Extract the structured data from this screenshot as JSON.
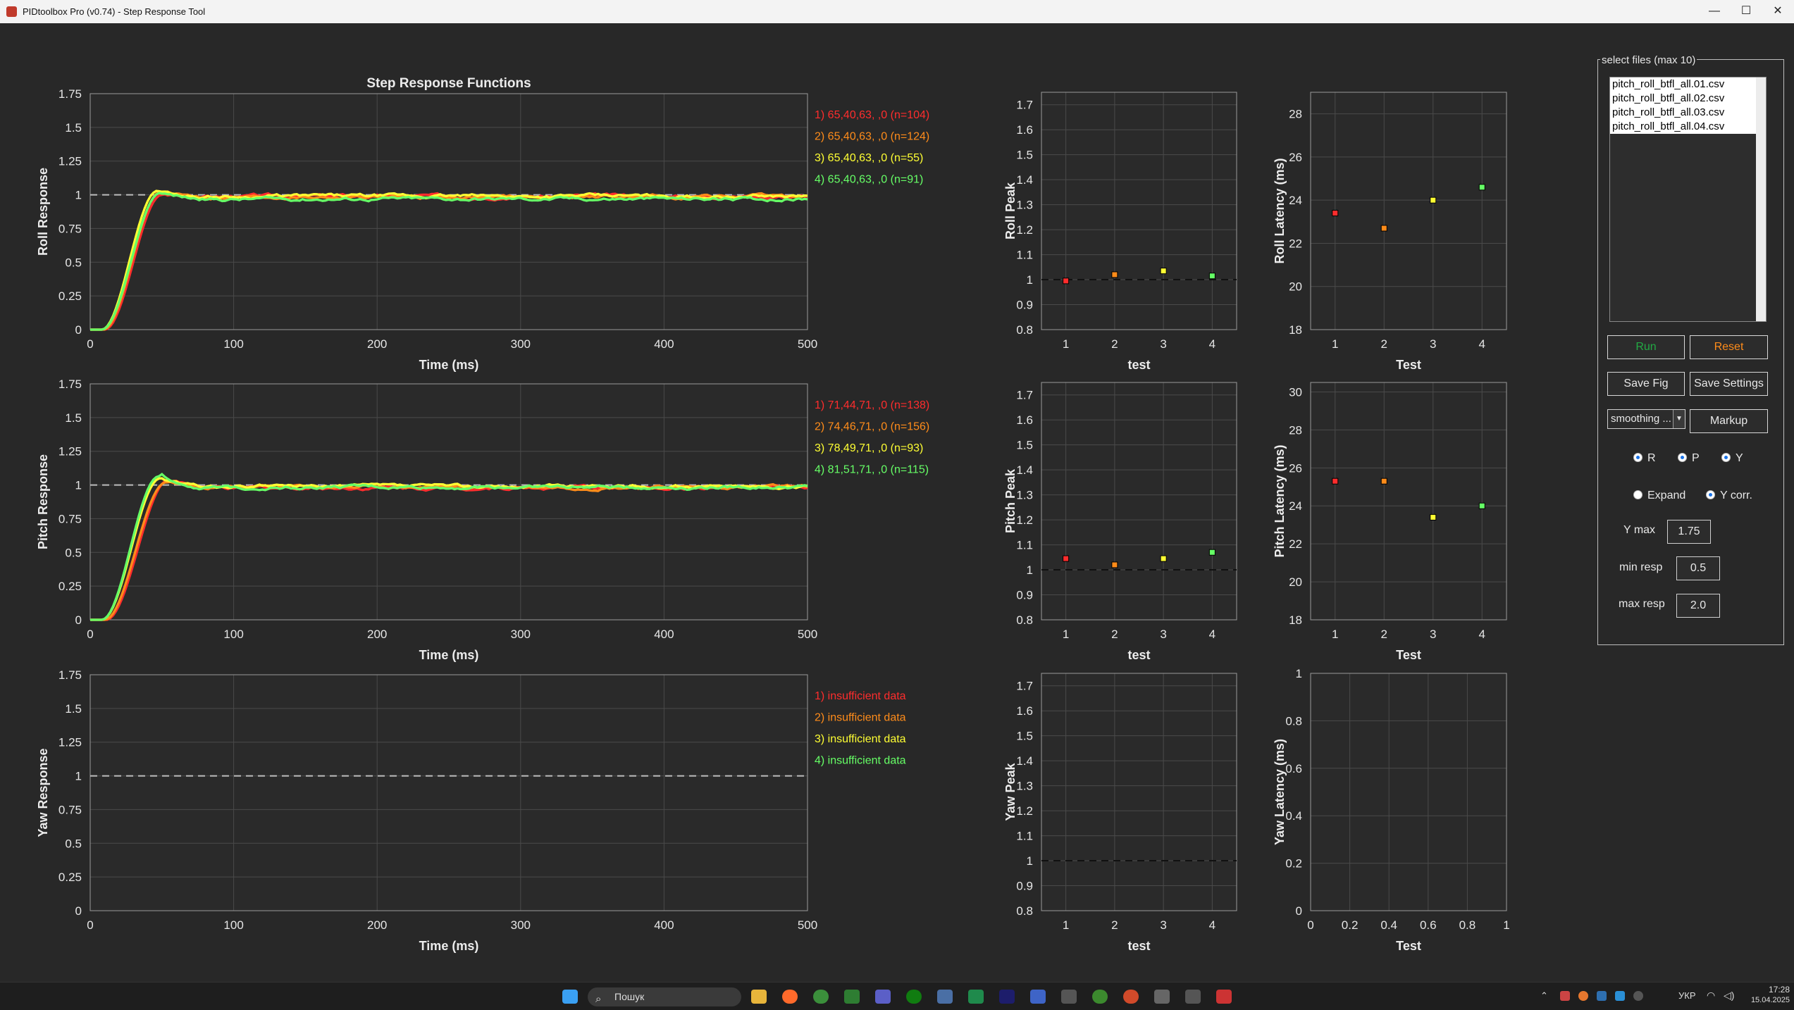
{
  "window": {
    "title": "PIDtoolbox Pro (v0.74) - Step Response Tool",
    "minimize": "—",
    "maximize": "☐",
    "close": "✕"
  },
  "main_title": "Step Response Functions",
  "ticks": {
    "resp_y": [
      "0",
      "0.25",
      "0.5",
      "0.75",
      "1",
      "1.25",
      "1.5",
      "1.75"
    ],
    "time_x": [
      "0",
      "100",
      "200",
      "300",
      "400",
      "500"
    ],
    "peak_y": [
      "0.8",
      "0.9",
      "1",
      "1.1",
      "1.2",
      "1.3",
      "1.4",
      "1.5",
      "1.6",
      "1.7"
    ],
    "test_x": [
      "1",
      "2",
      "3",
      "4"
    ],
    "roll_lat_y": [
      "18",
      "20",
      "22",
      "24",
      "26",
      "28"
    ],
    "pitch_lat_y": [
      "18",
      "20",
      "22",
      "24",
      "26",
      "28",
      "30"
    ],
    "yaw_lat_y": [
      "0",
      "0.2",
      "0.4",
      "0.6",
      "0.8",
      "1"
    ],
    "yaw_lat_x": [
      "0",
      "0.2",
      "0.4",
      "0.6",
      "0.8",
      "1"
    ]
  },
  "labels": {
    "time_axis": "Time (ms)",
    "test_lower": "test",
    "test_upper": "Test",
    "roll_response": "Roll Response",
    "pitch_response": "Pitch Response",
    "yaw_response": "Yaw Response",
    "roll_peak": "Roll Peak",
    "pitch_peak": "Pitch Peak",
    "yaw_peak": "Yaw Peak",
    "roll_latency": "Roll Latency (ms)",
    "pitch_latency": "Pitch Latency (ms)",
    "yaw_latency": "Yaw Latency (ms)"
  },
  "legends": {
    "roll": [
      "1) 65,40,63, ,0  (n=104)",
      "2) 65,40,63, ,0  (n=124)",
      "3) 65,40,63, ,0  (n=55)",
      "4) 65,40,63, ,0  (n=91)"
    ],
    "pitch": [
      "1) 71,44,71, ,0  (n=138)",
      "2) 74,46,71, ,0  (n=156)",
      "3) 78,49,71, ,0  (n=93)",
      "4) 81,51,71, ,0  (n=115)"
    ],
    "yaw": [
      "1) insufficient data",
      "2) insufficient data",
      "3) insufficient data",
      "4) insufficient data"
    ]
  },
  "colors": {
    "test1": "#ff2d2d",
    "test2": "#ff8c1a",
    "test3": "#ffff33",
    "test4": "#66ff66",
    "run": "#22aa44",
    "reset": "#ff8c1a",
    "axes_bg": "#2a2a2a",
    "grid": "#4a4a4a"
  },
  "chart_data": [
    {
      "type": "line",
      "title": "Step Response Functions",
      "ylabel": "Roll Response",
      "xlabel": "Time (ms)",
      "xlim": [
        0,
        500
      ],
      "ylim": [
        0,
        1.75
      ],
      "reference_line": 1,
      "series": [
        {
          "name": "1) 65,40,63, ,0  (n=104)",
          "delay": 10,
          "rise": 40,
          "overshoot": 1.0,
          "settle": 0.99
        },
        {
          "name": "2) 65,40,63, ,0  (n=124)",
          "delay": 9,
          "rise": 40,
          "overshoot": 1.02,
          "settle": 0.985
        },
        {
          "name": "3) 65,40,63, ,0  (n=55)",
          "delay": 8,
          "rise": 39,
          "overshoot": 1.03,
          "settle": 0.99
        },
        {
          "name": "4) 65,40,63, ,0  (n=91)",
          "delay": 8,
          "rise": 41,
          "overshoot": 1.015,
          "settle": 0.97
        }
      ]
    },
    {
      "type": "line",
      "ylabel": "Pitch Response",
      "xlabel": "Time (ms)",
      "xlim": [
        0,
        500
      ],
      "ylim": [
        0,
        1.75
      ],
      "reference_line": 1,
      "series": [
        {
          "name": "1) 71,44,71, ,0  (n=138)",
          "delay": 11,
          "rise": 44,
          "overshoot": 1.04,
          "settle": 0.98
        },
        {
          "name": "2) 74,46,71, ,0  (n=156)",
          "delay": 10,
          "rise": 43,
          "overshoot": 1.02,
          "settle": 0.985
        },
        {
          "name": "3) 78,49,71, ,0  (n=93)",
          "delay": 8,
          "rise": 41,
          "overshoot": 1.05,
          "settle": 0.99
        },
        {
          "name": "4) 81,51,71, ,0  (n=115)",
          "delay": 8,
          "rise": 40,
          "overshoot": 1.065,
          "settle": 0.985
        }
      ]
    },
    {
      "type": "line",
      "ylabel": "Yaw Response",
      "xlabel": "Time (ms)",
      "xlim": [
        0,
        500
      ],
      "ylim": [
        0,
        1.75
      ],
      "reference_line": 1,
      "series": []
    },
    {
      "type": "scatter",
      "ylabel": "Roll Peak",
      "xlabel": "test",
      "xlim": [
        0.5,
        4.5
      ],
      "ylim": [
        0.8,
        1.75
      ],
      "reference_line": 1,
      "x": [
        1,
        2,
        3,
        4
      ],
      "y": [
        0.995,
        1.02,
        1.035,
        1.015
      ]
    },
    {
      "type": "scatter",
      "ylabel": "Roll Latency (ms)",
      "xlabel": "Test",
      "xlim": [
        0.5,
        4.5
      ],
      "ylim": [
        18,
        29
      ],
      "x": [
        1,
        2,
        3,
        4
      ],
      "y": [
        23.4,
        22.7,
        24.0,
        24.6
      ]
    },
    {
      "type": "scatter",
      "ylabel": "Pitch Peak",
      "xlabel": "test",
      "xlim": [
        0.5,
        4.5
      ],
      "ylim": [
        0.8,
        1.75
      ],
      "reference_line": 1,
      "x": [
        1,
        2,
        3,
        4
      ],
      "y": [
        1.045,
        1.02,
        1.045,
        1.07
      ]
    },
    {
      "type": "scatter",
      "ylabel": "Pitch Latency (ms)",
      "xlabel": "Test",
      "xlim": [
        0.5,
        4.5
      ],
      "ylim": [
        18,
        30.5
      ],
      "x": [
        1,
        2,
        3,
        4
      ],
      "y": [
        25.3,
        25.3,
        23.4,
        24.0
      ]
    },
    {
      "type": "scatter",
      "ylabel": "Yaw Peak",
      "xlabel": "test",
      "xlim": [
        0.5,
        4.5
      ],
      "ylim": [
        0.8,
        1.75
      ],
      "reference_line": 1,
      "x": [],
      "y": []
    },
    {
      "type": "scatter",
      "ylabel": "Yaw Latency (ms)",
      "xlabel": "Test",
      "xlim": [
        0,
        1
      ],
      "ylim": [
        0,
        1
      ],
      "x": [],
      "y": []
    }
  ],
  "panel": {
    "title": "select files (max 10)",
    "files": [
      "pitch_roll_btfl_all.01.csv",
      "pitch_roll_btfl_all.02.csv",
      "pitch_roll_btfl_all.03.csv",
      "pitch_roll_btfl_all.04.csv"
    ],
    "run": "Run",
    "reset": "Reset",
    "save_fig": "Save Fig",
    "save_settings": "Save Settings",
    "smoothing": "smoothing ...",
    "markup": "Markup",
    "radio_r": "R",
    "radio_p": "P",
    "radio_y": "Y",
    "expand": "Expand",
    "ycorr": "Y corr.",
    "ymax_label": "Y max",
    "ymax_value": "1.75",
    "minresp_label": "min resp",
    "minresp_value": "0.5",
    "maxresp_label": "max resp",
    "maxresp_value": "2.0"
  },
  "taskbar": {
    "search": "Пошук",
    "lang": "УКР",
    "time": "17:28",
    "date": "15.04.2025"
  }
}
